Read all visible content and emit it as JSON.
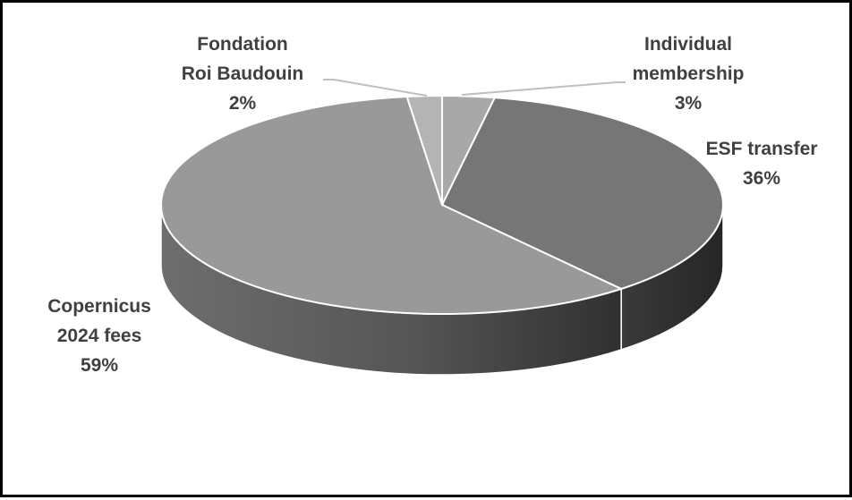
{
  "chart_data": {
    "type": "pie",
    "style": "3d",
    "start_angle_deg": 0,
    "direction": "clockwise",
    "slices": [
      {
        "name": "Individual membership",
        "value": 3,
        "label_lines": [
          "Individual",
          "membership",
          "3%"
        ],
        "color": "#a8a8a8"
      },
      {
        "name": "ESF transfer",
        "value": 36,
        "label_lines": [
          "ESF transfer",
          "36%"
        ],
        "color": "#767676"
      },
      {
        "name": "Copernicus 2024 fees",
        "value": 59,
        "label_lines": [
          "Copernicus",
          "2024 fees",
          "59%"
        ],
        "color": "#999999"
      },
      {
        "name": "Fondation Roi Baudouin",
        "value": 2,
        "label_lines": [
          "Fondation",
          "Roi Baudouin",
          "2%"
        ],
        "color": "#b4b4b4"
      }
    ],
    "legend": "none",
    "data_labels": "outside, name and percent"
  }
}
